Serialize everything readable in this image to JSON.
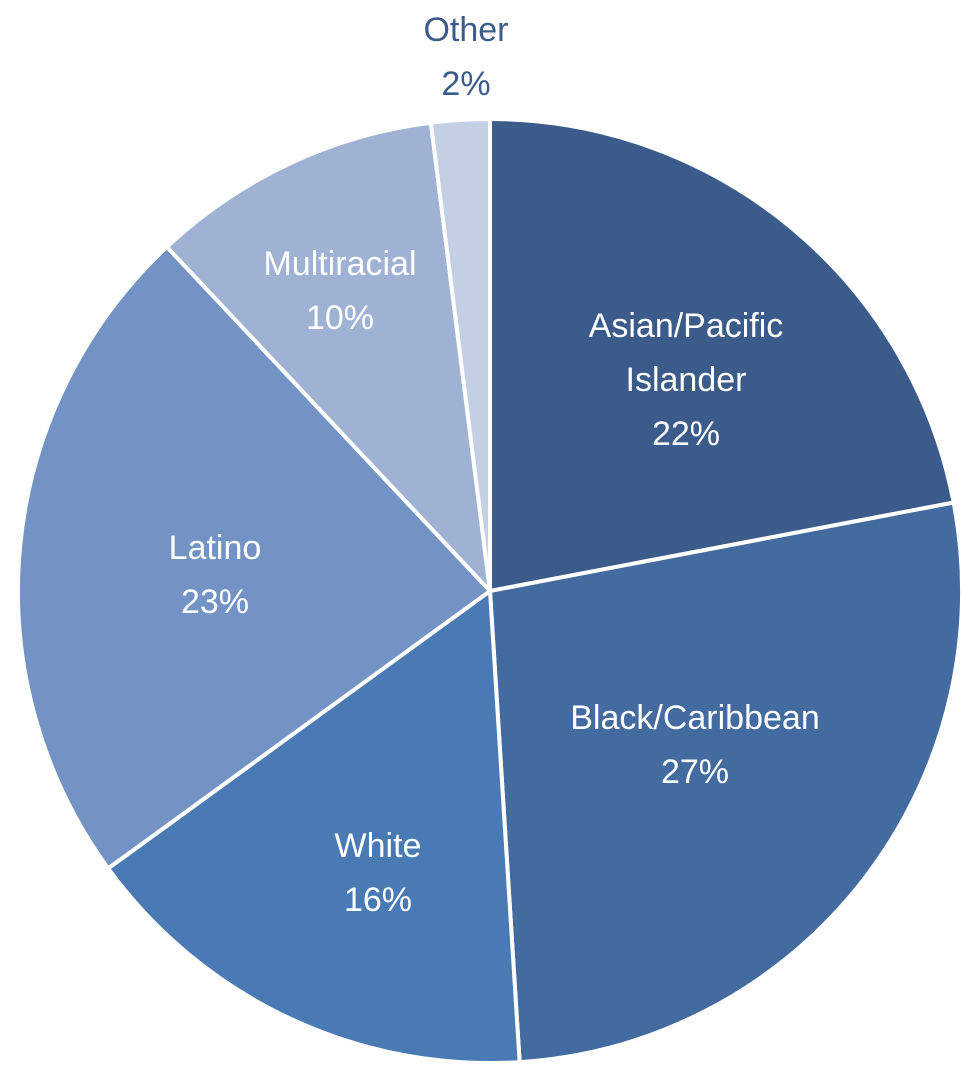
{
  "chart_data": {
    "type": "pie",
    "title": "",
    "start": "12 o'clock",
    "direction": "clockwise",
    "legend": "none",
    "slices": [
      {
        "name": "Asian/Pacific Islander",
        "label_lines": [
          "Asian/Pacific",
          "Islander"
        ],
        "value": 22,
        "pct_label": "22%",
        "color": "#3b5c8a",
        "label_color": "#ffffff",
        "label_placement": "inside"
      },
      {
        "name": "Black/Caribbean",
        "label_lines": [
          "Black/Caribbean"
        ],
        "value": 27,
        "pct_label": "27%",
        "color": "#436b9f",
        "label_color": "#ffffff",
        "label_placement": "inside"
      },
      {
        "name": "White",
        "label_lines": [
          "White"
        ],
        "value": 16,
        "pct_label": "16%",
        "color": "#4a7ab4",
        "label_color": "#ffffff",
        "label_placement": "inside"
      },
      {
        "name": "Latino",
        "label_lines": [
          "Latino"
        ],
        "value": 23,
        "pct_label": "23%",
        "color": "#7293c3",
        "label_color": "#ffffff",
        "label_placement": "inside"
      },
      {
        "name": "Multiracial",
        "label_lines": [
          "Multiracial"
        ],
        "value": 10,
        "pct_label": "10%",
        "color": "#a0b2d3",
        "label_color": "#ffffff",
        "label_placement": "inside"
      },
      {
        "name": "Other",
        "label_lines": [
          "Other"
        ],
        "value": 2,
        "pct_label": "2%",
        "color": "#c4cfe4",
        "label_color": "#3b5c8a",
        "label_placement": "outside"
      }
    ]
  }
}
